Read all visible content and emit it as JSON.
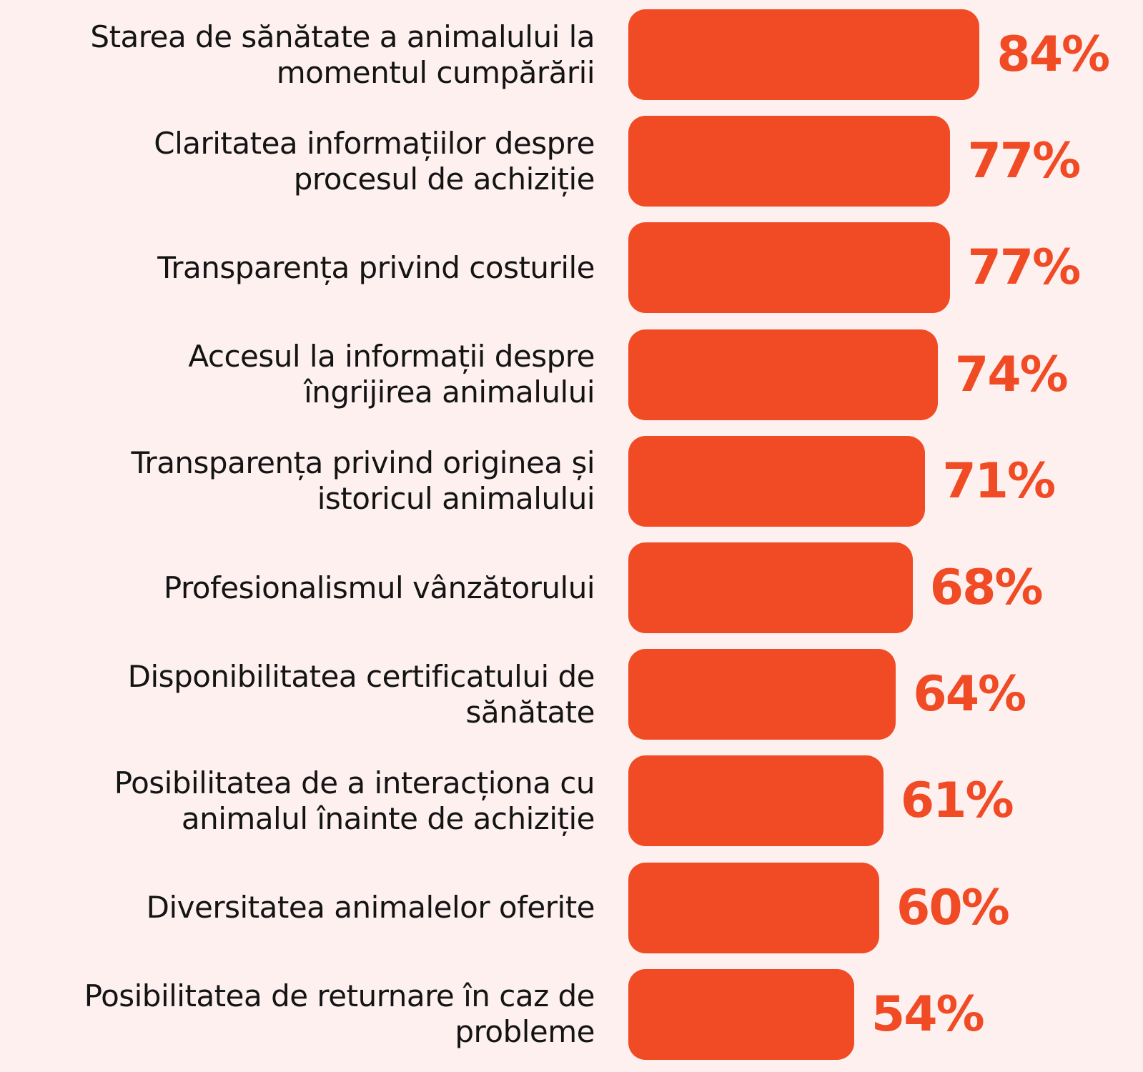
{
  "chart_data": {
    "type": "bar",
    "orientation": "horizontal",
    "categories": [
      "Starea de sănătate a animalului la\nmomentul cumpărării",
      "Claritatea informațiilor despre\nprocesul de achiziție",
      "Transparența privind costurile",
      "Accesul la informații despre\nîngrijirea animalului",
      "Transparența privind originea și\nistoricul animalului",
      "Profesionalismul vânzătorului",
      "Disponibilitatea certificatului de\nsănătate",
      "Posibilitatea de a interacționa cu\nanimalul înainte de achiziție",
      "Diversitatea animalelor oferite",
      "Posibilitatea de returnare în caz de\nprobleme"
    ],
    "values": [
      84,
      77,
      77,
      74,
      71,
      68,
      64,
      61,
      60,
      54
    ],
    "value_labels": [
      "84%",
      "77%",
      "77%",
      "74%",
      "71%",
      "68%",
      "64%",
      "61%",
      "60%",
      "54%"
    ],
    "color": "#f04b25"
  }
}
